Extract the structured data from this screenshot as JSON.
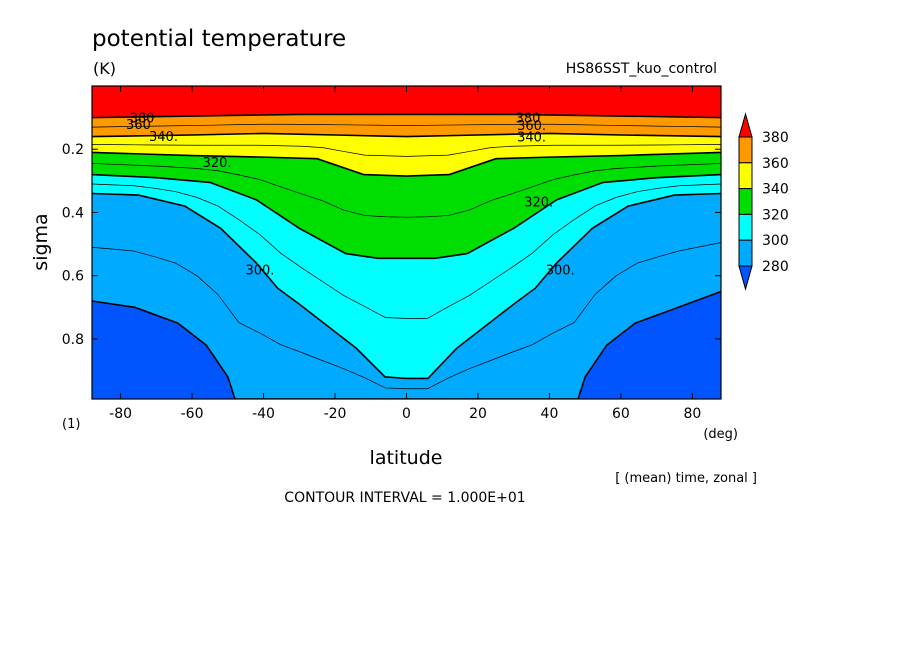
{
  "chart_data": {
    "type": "contour",
    "title": "potential temperature",
    "units": "(K)",
    "run_name": "HS86SST_kuo_control",
    "xlabel": "latitude",
    "xunit": "(deg)",
    "ylabel": "sigma",
    "yunit": "(1)",
    "subtitle": "[ (mean) time, zonal ]",
    "contour_interval": "CONTOUR INTERVAL = 1.000E+01",
    "xlim": [
      -88,
      88
    ],
    "ylim": [
      0.0,
      0.99
    ],
    "y_reversed": true,
    "xticks": [
      "-80",
      "-60",
      "-40",
      "-20",
      "0",
      "20",
      "40",
      "60",
      "80"
    ],
    "xtick_values": [
      -80,
      -60,
      -40,
      -20,
      0,
      20,
      40,
      60,
      80
    ],
    "yticks": [
      "0.2",
      "0.4",
      "0.6",
      "0.8"
    ],
    "ytick_values": [
      0.2,
      0.4,
      0.6,
      0.8
    ],
    "levels": [
      280,
      300,
      320,
      340,
      360,
      380
    ],
    "colorbar": {
      "labels": [
        "380",
        "360",
        "340",
        "320",
        "300",
        "280"
      ],
      "colors": [
        "#ff0000",
        "#ff9900",
        "#ffff00",
        "#00dd00",
        "#00ffff",
        "#00aaff",
        "#0055ff"
      ]
    },
    "contour_labels": [
      {
        "text": "380",
        "lat": -74,
        "sigma": 0.105
      },
      {
        "text": "360",
        "lat": -75,
        "sigma": 0.125
      },
      {
        "text": "340.",
        "lat": -68,
        "sigma": 0.163
      },
      {
        "text": "320.",
        "lat": -53,
        "sigma": 0.245
      },
      {
        "text": "300.",
        "lat": -41,
        "sigma": 0.585
      },
      {
        "text": "380",
        "lat": 34,
        "sigma": 0.105
      },
      {
        "text": "360.",
        "lat": 35,
        "sigma": 0.128
      },
      {
        "text": "340.",
        "lat": 35,
        "sigma": 0.165
      },
      {
        "text": "320.",
        "lat": 37,
        "sigma": 0.37
      },
      {
        "text": "300.",
        "lat": 43,
        "sigma": 0.585
      }
    ],
    "filled_regions": [
      {
        "level_min": 370,
        "color": "#ff0000",
        "boundary": [
          [
            -88,
            0.1
          ],
          [
            -60,
            0.095
          ],
          [
            -30,
            0.09
          ],
          [
            0,
            0.09
          ],
          [
            30,
            0.09
          ],
          [
            60,
            0.095
          ],
          [
            88,
            0.1
          ]
        ]
      },
      {
        "level_min": 350,
        "color": "#ff9900",
        "boundary": [
          [
            -88,
            0.16
          ],
          [
            -60,
            0.155
          ],
          [
            -40,
            0.15
          ],
          [
            -20,
            0.155
          ],
          [
            0,
            0.16
          ],
          [
            20,
            0.155
          ],
          [
            40,
            0.15
          ],
          [
            60,
            0.155
          ],
          [
            88,
            0.16
          ]
        ]
      },
      {
        "level_min": 330,
        "color": "#ffff00",
        "boundary": [
          [
            -88,
            0.21
          ],
          [
            -60,
            0.22
          ],
          [
            -40,
            0.225
          ],
          [
            -25,
            0.23
          ],
          [
            -12,
            0.28
          ],
          [
            0,
            0.285
          ],
          [
            12,
            0.28
          ],
          [
            25,
            0.23
          ],
          [
            40,
            0.225
          ],
          [
            60,
            0.22
          ],
          [
            88,
            0.21
          ]
        ]
      },
      {
        "level_min": 310,
        "color": "#00dd00",
        "boundary": [
          [
            -88,
            0.28
          ],
          [
            -70,
            0.29
          ],
          [
            -55,
            0.305
          ],
          [
            -42,
            0.36
          ],
          [
            -30,
            0.45
          ],
          [
            -17,
            0.53
          ],
          [
            -8,
            0.545
          ],
          [
            0,
            0.545
          ],
          [
            8,
            0.545
          ],
          [
            17,
            0.53
          ],
          [
            30,
            0.45
          ],
          [
            42,
            0.36
          ],
          [
            55,
            0.305
          ],
          [
            70,
            0.29
          ],
          [
            88,
            0.28
          ]
        ]
      },
      {
        "level_min": 290,
        "color": "#00ffff",
        "boundary": [
          [
            -88,
            0.34
          ],
          [
            -75,
            0.345
          ],
          [
            -62,
            0.38
          ],
          [
            -52,
            0.45
          ],
          [
            -42,
            0.56
          ],
          [
            -36,
            0.64
          ],
          [
            -30,
            0.69
          ],
          [
            -22,
            0.76
          ],
          [
            -14,
            0.83
          ],
          [
            -6,
            0.92
          ],
          [
            0,
            0.925
          ],
          [
            6,
            0.925
          ],
          [
            14,
            0.83
          ],
          [
            22,
            0.76
          ],
          [
            30,
            0.69
          ],
          [
            36,
            0.64
          ],
          [
            42,
            0.56
          ],
          [
            52,
            0.45
          ],
          [
            62,
            0.38
          ],
          [
            75,
            0.345
          ],
          [
            88,
            0.34
          ]
        ]
      },
      {
        "level_min": 270,
        "color": "#00aaff",
        "boundary": [
          [
            -88,
            0.68
          ],
          [
            -76,
            0.7
          ],
          [
            -64,
            0.75
          ],
          [
            -56,
            0.82
          ],
          [
            -50,
            0.92
          ],
          [
            -48,
            0.99
          ],
          [
            48,
            0.99
          ],
          [
            50,
            0.92
          ],
          [
            56,
            0.82
          ],
          [
            64,
            0.75
          ],
          [
            76,
            0.7
          ],
          [
            88,
            0.65
          ]
        ]
      },
      {
        "level_min": 0,
        "color": "#0055ff",
        "boundary": []
      }
    ]
  }
}
